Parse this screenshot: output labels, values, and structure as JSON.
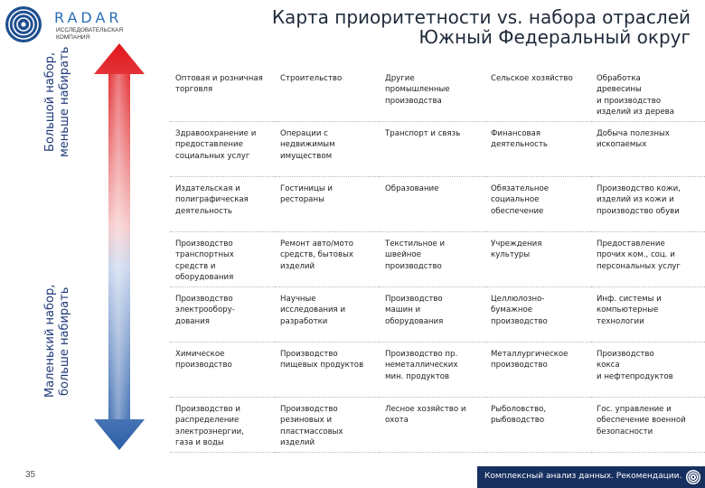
{
  "header": {
    "logo_word": "RADAR",
    "logo_subtitle_line1": "ИССЛЕДОВАТЕЛЬСКАЯ",
    "logo_subtitle_line2": "КОМПАНИЯ",
    "title_line1": "Карта приоритетности vs. набора отраслей",
    "title_line2": "Южный Федеральный округ"
  },
  "axis": {
    "top_label_line1": "Большой набор,",
    "top_label_line2": "меньше набирать",
    "bottom_label_line1": "Маленький набор,",
    "bottom_label_line2": "больше набирать",
    "arrow_color_top": "#e0161b",
    "arrow_color_bottom": "#2c5fa8"
  },
  "grid": {
    "rows": [
      [
        "Оптовая и розничная\nторговля",
        "Строительство",
        "Другие\nпромышленные\nпроизводства",
        "Сельское хозяйство",
        "Обработка\nдревесины\nи производство\nизделий из дерева"
      ],
      [
        "Здравоохранение и\nпредоставление\nсоциальных услуг",
        "Операции с\nнедвижимым\nимуществом",
        "Транспорт и связь",
        "Финансовая\nдеятельность",
        "Добыча полезных\nископаемых"
      ],
      [
        "Издательская и\nполиграфическая\nдеятельность",
        "Гостиницы и\nрестораны",
        "Образование",
        "Обязательное\nсоциальное\nобеспечение",
        "Производство кожи,\nизделий из кожи и\nпроизводство обуви"
      ],
      [
        "Производство\nтранспортных\nсредств и\nоборудования",
        "Ремонт авто/мото\nсредств, бытовых\nизделий",
        "Текстильное и\nшвейное\nпроизводство",
        "Учреждения\n культуры",
        "Предоставление\nпрочих ком., соц. и\nперсональных услуг"
      ],
      [
        "Производство\nэлектрообору-\nдования",
        "Научные\nисследования и\nразработки",
        "Производство\nмашин и\nоборудования",
        "Целлюлозно-\nбумажное\nпроизводство",
        "Инф. системы и\nкомпьютерные\nтехнологии"
      ],
      [
        "Химическое\nпроизводство",
        "Производство\nпищевых продуктов",
        "Производство пр.\nнеметаллических\nмин. продуктов",
        "Металлургическое\nпроизводство",
        "Производство\nкокса\nи нефтепродуктов"
      ],
      [
        "Производство и\nраспределение\nэлектроэнергии,\nгаза и воды",
        "Производство\nрезиновых и\nпластмассовых\nизделий",
        "Лесное хозяйство и\nохота",
        "Рыболовство,\nрыбоводство",
        "Гос. управление и\nобеспечение военной\nбезопасности"
      ]
    ]
  },
  "footer": {
    "page_number": "35",
    "text": "Комплексный анализ данных. Рекомендации.",
    "bar_color": "#17305f"
  }
}
